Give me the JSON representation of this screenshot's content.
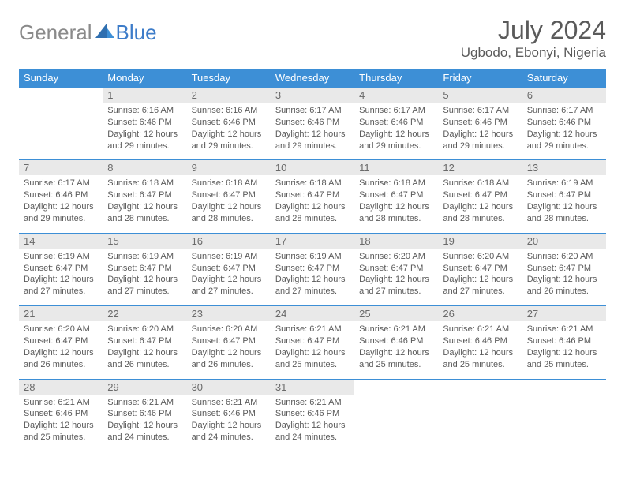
{
  "logo": {
    "text1": "General",
    "text2": "Blue"
  },
  "title": "July 2024",
  "location": "Ugbodo, Ebonyi, Nigeria",
  "colors": {
    "header_bg": "#3d8fd6",
    "header_text": "#ffffff",
    "daynum_bg": "#e9e9e9",
    "border": "#3d8fd6",
    "body_text": "#5a5a5a",
    "logo_gray": "#8a8a8a",
    "logo_blue": "#3d7cc9"
  },
  "days_of_week": [
    "Sunday",
    "Monday",
    "Tuesday",
    "Wednesday",
    "Thursday",
    "Friday",
    "Saturday"
  ],
  "start_offset": 1,
  "num_days": 31,
  "cells": {
    "1": {
      "sunrise": "6:16 AM",
      "sunset": "6:46 PM",
      "daylight": "12 hours and 29 minutes."
    },
    "2": {
      "sunrise": "6:16 AM",
      "sunset": "6:46 PM",
      "daylight": "12 hours and 29 minutes."
    },
    "3": {
      "sunrise": "6:17 AM",
      "sunset": "6:46 PM",
      "daylight": "12 hours and 29 minutes."
    },
    "4": {
      "sunrise": "6:17 AM",
      "sunset": "6:46 PM",
      "daylight": "12 hours and 29 minutes."
    },
    "5": {
      "sunrise": "6:17 AM",
      "sunset": "6:46 PM",
      "daylight": "12 hours and 29 minutes."
    },
    "6": {
      "sunrise": "6:17 AM",
      "sunset": "6:46 PM",
      "daylight": "12 hours and 29 minutes."
    },
    "7": {
      "sunrise": "6:17 AM",
      "sunset": "6:46 PM",
      "daylight": "12 hours and 29 minutes."
    },
    "8": {
      "sunrise": "6:18 AM",
      "sunset": "6:47 PM",
      "daylight": "12 hours and 28 minutes."
    },
    "9": {
      "sunrise": "6:18 AM",
      "sunset": "6:47 PM",
      "daylight": "12 hours and 28 minutes."
    },
    "10": {
      "sunrise": "6:18 AM",
      "sunset": "6:47 PM",
      "daylight": "12 hours and 28 minutes."
    },
    "11": {
      "sunrise": "6:18 AM",
      "sunset": "6:47 PM",
      "daylight": "12 hours and 28 minutes."
    },
    "12": {
      "sunrise": "6:18 AM",
      "sunset": "6:47 PM",
      "daylight": "12 hours and 28 minutes."
    },
    "13": {
      "sunrise": "6:19 AM",
      "sunset": "6:47 PM",
      "daylight": "12 hours and 28 minutes."
    },
    "14": {
      "sunrise": "6:19 AM",
      "sunset": "6:47 PM",
      "daylight": "12 hours and 27 minutes."
    },
    "15": {
      "sunrise": "6:19 AM",
      "sunset": "6:47 PM",
      "daylight": "12 hours and 27 minutes."
    },
    "16": {
      "sunrise": "6:19 AM",
      "sunset": "6:47 PM",
      "daylight": "12 hours and 27 minutes."
    },
    "17": {
      "sunrise": "6:19 AM",
      "sunset": "6:47 PM",
      "daylight": "12 hours and 27 minutes."
    },
    "18": {
      "sunrise": "6:20 AM",
      "sunset": "6:47 PM",
      "daylight": "12 hours and 27 minutes."
    },
    "19": {
      "sunrise": "6:20 AM",
      "sunset": "6:47 PM",
      "daylight": "12 hours and 27 minutes."
    },
    "20": {
      "sunrise": "6:20 AM",
      "sunset": "6:47 PM",
      "daylight": "12 hours and 26 minutes."
    },
    "21": {
      "sunrise": "6:20 AM",
      "sunset": "6:47 PM",
      "daylight": "12 hours and 26 minutes."
    },
    "22": {
      "sunrise": "6:20 AM",
      "sunset": "6:47 PM",
      "daylight": "12 hours and 26 minutes."
    },
    "23": {
      "sunrise": "6:20 AM",
      "sunset": "6:47 PM",
      "daylight": "12 hours and 26 minutes."
    },
    "24": {
      "sunrise": "6:21 AM",
      "sunset": "6:47 PM",
      "daylight": "12 hours and 25 minutes."
    },
    "25": {
      "sunrise": "6:21 AM",
      "sunset": "6:46 PM",
      "daylight": "12 hours and 25 minutes."
    },
    "26": {
      "sunrise": "6:21 AM",
      "sunset": "6:46 PM",
      "daylight": "12 hours and 25 minutes."
    },
    "27": {
      "sunrise": "6:21 AM",
      "sunset": "6:46 PM",
      "daylight": "12 hours and 25 minutes."
    },
    "28": {
      "sunrise": "6:21 AM",
      "sunset": "6:46 PM",
      "daylight": "12 hours and 25 minutes."
    },
    "29": {
      "sunrise": "6:21 AM",
      "sunset": "6:46 PM",
      "daylight": "12 hours and 24 minutes."
    },
    "30": {
      "sunrise": "6:21 AM",
      "sunset": "6:46 PM",
      "daylight": "12 hours and 24 minutes."
    },
    "31": {
      "sunrise": "6:21 AM",
      "sunset": "6:46 PM",
      "daylight": "12 hours and 24 minutes."
    }
  },
  "labels": {
    "sunrise": "Sunrise: ",
    "sunset": "Sunset: ",
    "daylight": "Daylight: "
  }
}
